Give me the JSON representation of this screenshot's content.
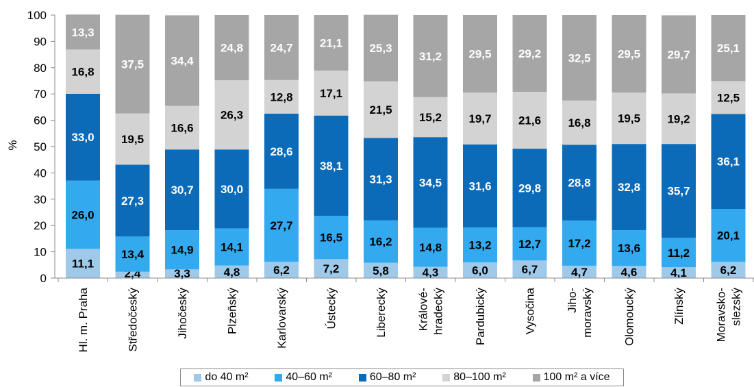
{
  "chart_data": {
    "type": "bar",
    "stacked": true,
    "ylabel": "%",
    "ylim": [
      0,
      100
    ],
    "yticks": [
      0,
      10,
      20,
      30,
      40,
      50,
      60,
      70,
      80,
      90,
      100
    ],
    "grid": false,
    "legend_position": "bottom",
    "categories": [
      [
        "Hl. m. Praha"
      ],
      [
        "Středočeský"
      ],
      [
        "Jihočeský"
      ],
      [
        "Plzeňský"
      ],
      [
        "Karlovarský"
      ],
      [
        "Ústecký"
      ],
      [
        "Liberecký"
      ],
      [
        "Králové-",
        "hradecký"
      ],
      [
        "Pardubický"
      ],
      [
        "Vysočina"
      ],
      [
        "Jiho-",
        "moravský"
      ],
      [
        "Olomoucký"
      ],
      [
        "Zlínský"
      ],
      [
        "Moravsko-",
        "slezský"
      ]
    ],
    "series": [
      {
        "name": "do 40 m²",
        "color": "#9fc9e9",
        "label_color": "#000000",
        "values": [
          11.1,
          2.4,
          3.3,
          4.8,
          6.2,
          7.2,
          5.8,
          4.3,
          6.0,
          6.7,
          4.7,
          4.6,
          4.1,
          6.2
        ]
      },
      {
        "name": "40–60 m²",
        "color": "#33aaf0",
        "label_color": "#000000",
        "values": [
          26.0,
          13.4,
          14.9,
          14.1,
          27.7,
          16.5,
          16.2,
          14.8,
          13.2,
          12.7,
          17.2,
          13.6,
          11.2,
          20.1
        ]
      },
      {
        "name": "60–80 m²",
        "color": "#0c6bb8",
        "label_color": "#ffffff",
        "values": [
          33.0,
          27.3,
          30.7,
          30.0,
          28.6,
          38.1,
          31.3,
          34.5,
          31.6,
          29.8,
          28.8,
          32.8,
          35.7,
          36.1
        ]
      },
      {
        "name": "80–100 m²",
        "color": "#d3d3d3",
        "label_color": "#000000",
        "values": [
          16.8,
          19.5,
          16.6,
          26.3,
          12.8,
          17.1,
          21.5,
          15.2,
          19.7,
          21.6,
          16.8,
          19.5,
          19.2,
          12.5
        ]
      },
      {
        "name": "100 m² a více",
        "color": "#a6a6a6",
        "label_color": "#ffffff",
        "values": [
          13.3,
          37.5,
          34.4,
          24.8,
          24.7,
          21.1,
          25.3,
          31.2,
          29.5,
          29.2,
          32.5,
          29.5,
          29.7,
          25.1
        ]
      }
    ]
  }
}
